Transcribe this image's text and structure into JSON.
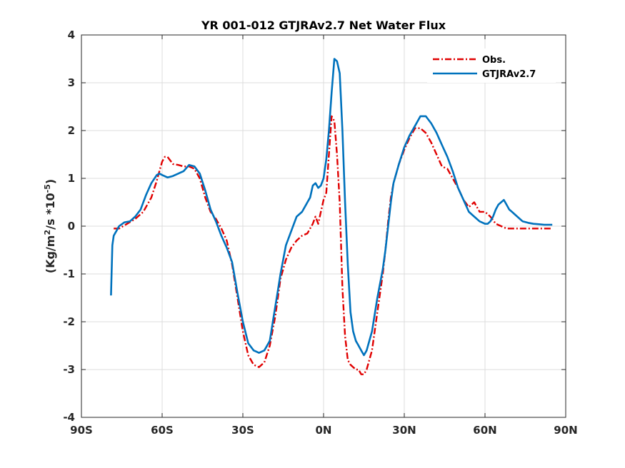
{
  "chart_data": {
    "type": "line",
    "title": "YR 001-012 GTJRAv2.7  Net Water Flux",
    "xlabel": "",
    "ylabel": {
      "prefix": "(Kg/m",
      "sup1": "2",
      "middle": "/s *10",
      "sup2": "-5",
      "suffix": ")"
    },
    "xlim": [
      -90,
      90
    ],
    "ylim": [
      -4,
      4
    ],
    "xticks": [
      -90,
      -60,
      -30,
      0,
      30,
      60,
      90
    ],
    "xtick_labels": [
      "90S",
      "60S",
      "30S",
      "0N",
      "30N",
      "60N",
      "90N"
    ],
    "yticks": [
      -4,
      -3,
      -2,
      -1,
      0,
      1,
      2,
      3,
      4
    ],
    "ytick_labels": [
      "-4",
      "-3",
      "-2",
      "-1",
      "0",
      "1",
      "2",
      "3",
      "4"
    ],
    "grid": true,
    "legend_position": "top-right",
    "series": [
      {
        "name": "Obs.",
        "color": "#e00000",
        "dash": "dash-dot",
        "x": [
          -78,
          -76,
          -73,
          -70,
          -67,
          -64,
          -62,
          -61,
          -60,
          -59,
          -58,
          -56,
          -54,
          -52,
          -50,
          -48,
          -46,
          -44,
          -42,
          -40,
          -38,
          -36,
          -34,
          -32,
          -30,
          -28,
          -26,
          -24,
          -22,
          -20,
          -18,
          -17,
          -16,
          -14,
          -12,
          -10,
          -8,
          -6,
          -4,
          -3,
          -2,
          -1,
          0,
          1,
          2,
          3,
          4,
          5,
          6,
          7,
          8,
          9,
          10,
          11,
          12,
          13,
          14,
          15,
          16,
          18,
          20,
          22,
          23,
          24,
          25,
          26,
          28,
          30,
          32,
          34,
          36,
          38,
          40,
          42,
          44,
          46,
          48,
          50,
          52,
          54,
          56,
          58,
          60,
          62,
          64,
          66,
          68,
          70,
          72,
          74,
          76,
          78,
          80,
          85
        ],
        "y": [
          -0.05,
          -0.05,
          0.05,
          0.15,
          0.3,
          0.6,
          0.95,
          1.15,
          1.35,
          1.45,
          1.45,
          1.3,
          1.28,
          1.25,
          1.25,
          1.2,
          1.0,
          0.6,
          0.3,
          0.15,
          -0.05,
          -0.3,
          -0.8,
          -1.5,
          -2.2,
          -2.7,
          -2.9,
          -2.95,
          -2.85,
          -2.5,
          -1.9,
          -1.5,
          -1.1,
          -0.7,
          -0.45,
          -0.3,
          -0.2,
          -0.15,
          0.05,
          0.2,
          0.05,
          0.3,
          0.55,
          0.7,
          1.5,
          2.3,
          2.2,
          1.5,
          0.5,
          -1.3,
          -2.3,
          -2.8,
          -2.9,
          -2.95,
          -3.0,
          -3.0,
          -3.1,
          -3.1,
          -3.0,
          -2.6,
          -1.8,
          -1.0,
          -0.5,
          0.1,
          0.6,
          0.9,
          1.3,
          1.6,
          1.85,
          2.05,
          2.05,
          1.95,
          1.75,
          1.5,
          1.25,
          1.2,
          1.0,
          0.8,
          0.55,
          0.4,
          0.5,
          0.3,
          0.3,
          0.2,
          0.05,
          0.0,
          -0.05,
          -0.05,
          -0.05,
          -0.05,
          -0.05,
          -0.05,
          -0.05,
          -0.05
        ]
      },
      {
        "name": "GTJRAv2.7",
        "color": "#0072bd",
        "dash": "solid",
        "x": [
          -79,
          -78.5,
          -78,
          -77,
          -76,
          -74,
          -72,
          -70,
          -68,
          -66,
          -64,
          -62,
          -61,
          -60,
          -58,
          -56,
          -54,
          -52,
          -50,
          -48,
          -46,
          -44,
          -42,
          -40,
          -38,
          -36,
          -34,
          -32,
          -30,
          -28,
          -26,
          -24,
          -22,
          -20,
          -18,
          -17,
          -16,
          -15,
          -14,
          -12,
          -10,
          -8,
          -6,
          -5,
          -4,
          -3,
          -2,
          -1,
          0,
          1,
          2,
          3,
          4,
          5,
          6,
          7,
          8,
          9,
          10,
          11,
          12,
          13,
          14,
          15,
          16,
          18,
          20,
          22,
          23,
          24,
          25,
          26,
          28,
          30,
          32,
          34,
          36,
          38,
          40,
          42,
          44,
          46,
          48,
          50,
          52,
          54,
          56,
          58,
          60,
          61,
          62,
          63,
          64,
          65,
          66,
          67,
          68,
          69,
          70,
          72,
          74,
          76,
          78,
          80,
          82,
          84,
          85
        ],
        "y": [
          -1.45,
          -0.4,
          -0.2,
          -0.1,
          0.0,
          0.08,
          0.1,
          0.2,
          0.35,
          0.65,
          0.9,
          1.07,
          1.1,
          1.07,
          1.02,
          1.05,
          1.1,
          1.15,
          1.28,
          1.25,
          1.1,
          0.75,
          0.35,
          0.1,
          -0.2,
          -0.45,
          -0.75,
          -1.4,
          -2.0,
          -2.45,
          -2.6,
          -2.65,
          -2.6,
          -2.4,
          -1.7,
          -1.35,
          -1.0,
          -0.7,
          -0.4,
          -0.1,
          0.2,
          0.3,
          0.5,
          0.6,
          0.85,
          0.9,
          0.8,
          0.85,
          1.0,
          1.4,
          2.0,
          2.8,
          3.5,
          3.45,
          3.2,
          2.0,
          0.5,
          -0.8,
          -1.8,
          -2.2,
          -2.4,
          -2.5,
          -2.6,
          -2.7,
          -2.6,
          -2.2,
          -1.5,
          -0.9,
          -0.5,
          0.0,
          0.5,
          0.9,
          1.3,
          1.65,
          1.9,
          2.1,
          2.3,
          2.3,
          2.15,
          1.95,
          1.7,
          1.45,
          1.15,
          0.8,
          0.55,
          0.3,
          0.2,
          0.1,
          0.05,
          0.05,
          0.1,
          0.2,
          0.35,
          0.45,
          0.5,
          0.55,
          0.45,
          0.35,
          0.3,
          0.2,
          0.1,
          0.07,
          0.05,
          0.04,
          0.03,
          0.03,
          0.03
        ]
      }
    ]
  }
}
